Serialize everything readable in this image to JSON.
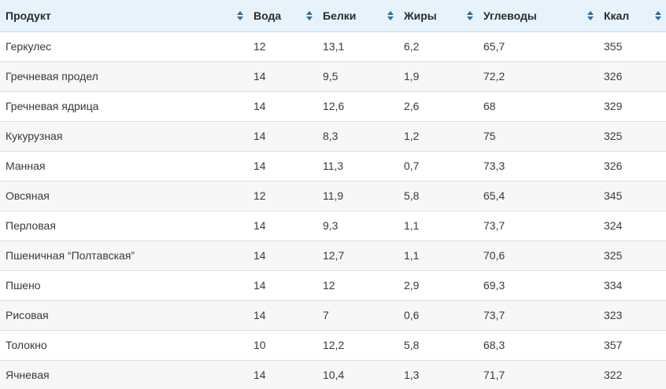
{
  "table": {
    "columns": [
      "Продукт",
      "Вода",
      "Белки",
      "Жиры",
      "Углеводы",
      "Ккал"
    ],
    "rows": [
      [
        "Геркулес",
        "12",
        "13,1",
        "6,2",
        "65,7",
        "355"
      ],
      [
        "Гречневая продел",
        "14",
        "9,5",
        "1,9",
        "72,2",
        "326"
      ],
      [
        "Гречневая ядрица",
        "14",
        "12,6",
        "2,6",
        "68",
        "329"
      ],
      [
        "Кукурузная",
        "14",
        "8,3",
        "1,2",
        "75",
        "325"
      ],
      [
        "Манная",
        "14",
        "11,3",
        "0,7",
        "73,3",
        "326"
      ],
      [
        "Овсяная",
        "12",
        "11,9",
        "5,8",
        "65,4",
        "345"
      ],
      [
        "Перловая",
        "14",
        "9,3",
        "1,1",
        "73,7",
        "324"
      ],
      [
        "Пшеничная “Полтавская”",
        "14",
        "12,7",
        "1,1",
        "70,6",
        "325"
      ],
      [
        "Пшено",
        "14",
        "12",
        "2,9",
        "69,3",
        "334"
      ],
      [
        "Рисовая",
        "14",
        "7",
        "0,6",
        "73,7",
        "323"
      ],
      [
        "Толокно",
        "10",
        "12,2",
        "5,8",
        "68,3",
        "357"
      ],
      [
        "Ячневая",
        "14",
        "10,4",
        "1,3",
        "71,7",
        "322"
      ]
    ],
    "sort_icon": "sort-updown-icon",
    "colors": {
      "header_bg": "#e8f2fa",
      "row_alt_bg": "#f7f7f7",
      "border": "#dedede",
      "sort_icon": "#2f6f9f"
    }
  }
}
